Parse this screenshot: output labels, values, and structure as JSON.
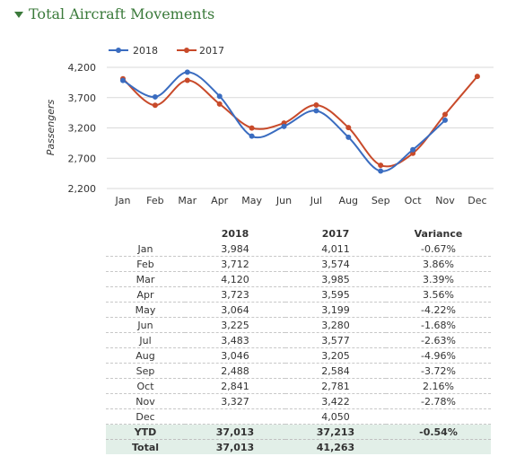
{
  "header": {
    "title": "Total Aircraft Movements"
  },
  "colors": {
    "series_2018": "#3a6cc0",
    "series_2017": "#c84a2a",
    "title_green": "#3a7a3a",
    "highlight_row": "#e2efe8"
  },
  "chart_data": {
    "type": "line",
    "ylabel": "Passengers",
    "ylim": [
      2200,
      4200
    ],
    "yticks": [
      "4,200",
      "3,700",
      "3,200",
      "2,700",
      "2,200"
    ],
    "categories": [
      "Jan",
      "Feb",
      "Mar",
      "Apr",
      "May",
      "Jun",
      "Jul",
      "Aug",
      "Sep",
      "Oct",
      "Nov",
      "Dec"
    ],
    "legend_position": "top-left",
    "grid": true,
    "series": [
      {
        "name": "2018",
        "color": "#3a6cc0",
        "values": [
          3984,
          3712,
          4120,
          3723,
          3064,
          3225,
          3483,
          3046,
          2488,
          2841,
          3327,
          null
        ]
      },
      {
        "name": "2017",
        "color": "#c84a2a",
        "values": [
          4011,
          3574,
          3985,
          3595,
          3199,
          3280,
          3577,
          3205,
          2584,
          2781,
          3422,
          4050
        ]
      }
    ]
  },
  "table": {
    "headers": [
      "",
      "2018",
      "2017",
      "Variance"
    ],
    "rows": [
      [
        "Jan",
        "3,984",
        "4,011",
        "-0.67%"
      ],
      [
        "Feb",
        "3,712",
        "3,574",
        "3.86%"
      ],
      [
        "Mar",
        "4,120",
        "3,985",
        "3.39%"
      ],
      [
        "Apr",
        "3,723",
        "3,595",
        "3.56%"
      ],
      [
        "May",
        "3,064",
        "3,199",
        "-4.22%"
      ],
      [
        "Jun",
        "3,225",
        "3,280",
        "-1.68%"
      ],
      [
        "Jul",
        "3,483",
        "3,577",
        "-2.63%"
      ],
      [
        "Aug",
        "3,046",
        "3,205",
        "-4.96%"
      ],
      [
        "Sep",
        "2,488",
        "2,584",
        "-3.72%"
      ],
      [
        "Oct",
        "2,841",
        "2,781",
        "2.16%"
      ],
      [
        "Nov",
        "3,327",
        "3,422",
        "-2.78%"
      ],
      [
        "Dec",
        "",
        "4,050",
        ""
      ]
    ],
    "ytd": [
      "YTD",
      "37,013",
      "37,213",
      "-0.54%"
    ],
    "total": [
      "Total",
      "37,013",
      "41,263",
      ""
    ]
  }
}
